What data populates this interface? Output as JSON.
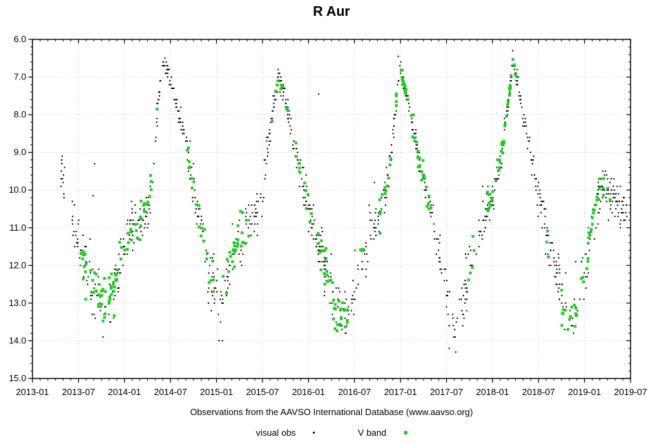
{
  "chart_data": {
    "type": "scatter",
    "title": "R Aur",
    "caption": "Observations from the AAVSO International Database (www.aavso.org)",
    "xlabel": "",
    "ylabel": "",
    "x_axis": {
      "start": 2013.0,
      "end": 2019.5,
      "major_tick_labels": [
        "2013-01",
        "2013-07",
        "2014-01",
        "2014-07",
        "2015-01",
        "2015-07",
        "2016-01",
        "2016-07",
        "2017-01",
        "2017-07",
        "2018-01",
        "2018-07",
        "2019-01",
        "2019-07"
      ],
      "minor_ticks_per_major": 6
    },
    "y_axis": {
      "min": 6.0,
      "max": 15.0,
      "major_tick_labels": [
        "6.0",
        "7.0",
        "8.0",
        "9.0",
        "10.0",
        "11.0",
        "12.0",
        "13.0",
        "14.0",
        "15.0"
      ],
      "minor_step": 0.2,
      "inverted": true
    },
    "grid": {
      "style": "dotted",
      "color": "#bfbfbf"
    },
    "series": [
      {
        "name": "visual obs",
        "marker": "dot",
        "color": "#000000",
        "marker_size": 2.2
      },
      {
        "name": "V band",
        "marker": "square",
        "color": "#1ecb1e",
        "marker_size": 4
      }
    ],
    "light_curve_keypoints": [
      [
        2013.32,
        9.4
      ],
      [
        2013.38,
        10.3
      ],
      [
        2013.45,
        10.9
      ],
      [
        2013.52,
        11.6
      ],
      [
        2013.6,
        12.3
      ],
      [
        2013.68,
        12.6
      ],
      [
        2013.76,
        12.9
      ],
      [
        2013.84,
        12.8
      ],
      [
        2013.92,
        12.3
      ],
      [
        2014.0,
        11.5
      ],
      [
        2014.08,
        11.0
      ],
      [
        2014.18,
        10.8
      ],
      [
        2014.26,
        10.4
      ],
      [
        2014.32,
        9.2
      ],
      [
        2014.36,
        7.9
      ],
      [
        2014.41,
        6.6
      ],
      [
        2014.47,
        6.8
      ],
      [
        2014.53,
        7.4
      ],
      [
        2014.63,
        8.3
      ],
      [
        2014.7,
        9.2
      ],
      [
        2014.77,
        10.2
      ],
      [
        2014.85,
        11.2
      ],
      [
        2014.93,
        12.3
      ],
      [
        2015.0,
        13.0
      ],
      [
        2015.06,
        13.1
      ],
      [
        2015.12,
        12.4
      ],
      [
        2015.19,
        11.6
      ],
      [
        2015.27,
        11.2
      ],
      [
        2015.36,
        11.0
      ],
      [
        2015.44,
        10.6
      ],
      [
        2015.5,
        9.9
      ],
      [
        2015.56,
        8.9
      ],
      [
        2015.62,
        7.8
      ],
      [
        2015.67,
        7.0
      ],
      [
        2015.72,
        7.3
      ],
      [
        2015.79,
        8.1
      ],
      [
        2015.87,
        9.0
      ],
      [
        2015.95,
        9.9
      ],
      [
        2016.03,
        10.8
      ],
      [
        2016.11,
        11.5
      ],
      [
        2016.19,
        12.2
      ],
      [
        2016.27,
        12.9
      ],
      [
        2016.35,
        13.4
      ],
      [
        2016.42,
        13.5
      ],
      [
        2016.49,
        12.7
      ],
      [
        2016.56,
        11.9
      ],
      [
        2016.63,
        11.4
      ],
      [
        2016.71,
        11.0
      ],
      [
        2016.79,
        10.5
      ],
      [
        2016.86,
        9.7
      ],
      [
        2016.92,
        8.6
      ],
      [
        2016.96,
        7.5
      ],
      [
        2016.99,
        6.7
      ],
      [
        2017.03,
        7.1
      ],
      [
        2017.09,
        7.8
      ],
      [
        2017.16,
        8.6
      ],
      [
        2017.23,
        9.5
      ],
      [
        2017.3,
        10.3
      ],
      [
        2017.37,
        11.1
      ],
      [
        2017.44,
        11.9
      ],
      [
        2017.51,
        12.8
      ],
      [
        2017.57,
        13.7
      ],
      [
        2017.63,
        13.5
      ],
      [
        2017.69,
        12.7
      ],
      [
        2017.76,
        11.9
      ],
      [
        2017.83,
        11.3
      ],
      [
        2017.91,
        10.8
      ],
      [
        2017.99,
        10.2
      ],
      [
        2018.06,
        9.5
      ],
      [
        2018.12,
        8.7
      ],
      [
        2018.17,
        7.7
      ],
      [
        2018.22,
        6.6
      ],
      [
        2018.27,
        7.1
      ],
      [
        2018.33,
        7.9
      ],
      [
        2018.4,
        8.8
      ],
      [
        2018.47,
        9.8
      ],
      [
        2018.54,
        10.6
      ],
      [
        2018.61,
        11.3
      ],
      [
        2018.69,
        12.1
      ],
      [
        2018.77,
        12.9
      ],
      [
        2018.84,
        13.5
      ],
      [
        2018.91,
        13.3
      ],
      [
        2018.97,
        12.5
      ],
      [
        2019.03,
        11.6
      ],
      [
        2019.09,
        10.8
      ],
      [
        2019.15,
        10.2
      ],
      [
        2019.22,
        9.9
      ],
      [
        2019.3,
        10.1
      ],
      [
        2019.38,
        10.4
      ],
      [
        2019.45,
        10.6
      ]
    ],
    "visual_generation": {
      "attempts": 1600,
      "time_range": [
        2013.31,
        2019.46
      ],
      "gaps": [
        [
          2013.0,
          2013.31
        ],
        [
          2013.355,
          2013.43
        ]
      ],
      "seed": 42,
      "quantize_mag": 0.1
    },
    "v_band_segments": [
      [
        2013.52,
        2013.97,
        55
      ],
      [
        2014.0,
        2014.3,
        26
      ],
      [
        2014.68,
        2014.97,
        22
      ],
      [
        2015.07,
        2015.36,
        26
      ],
      [
        2015.6,
        2015.72,
        7
      ],
      [
        2015.76,
        2016.06,
        14
      ],
      [
        2016.09,
        2016.44,
        38
      ],
      [
        2016.54,
        2016.6,
        3
      ],
      [
        2016.76,
        2016.96,
        16
      ],
      [
        2016.99,
        2017.34,
        42
      ],
      [
        2017.7,
        2017.8,
        5
      ],
      [
        2017.94,
        2018.26,
        44
      ],
      [
        2018.58,
        2018.66,
        3
      ],
      [
        2018.72,
        2018.92,
        16
      ],
      [
        2018.96,
        2019.28,
        28
      ]
    ],
    "extra_points": {
      "visual": [
        [
          2016.11,
          7.45
        ],
        [
          2013.675,
          9.3
        ],
        [
          2013.66,
          10.15
        ],
        [
          2016.975,
          6.45
        ]
      ],
      "v_band": [
        [
          2014.355,
          7.85
        ]
      ]
    }
  }
}
